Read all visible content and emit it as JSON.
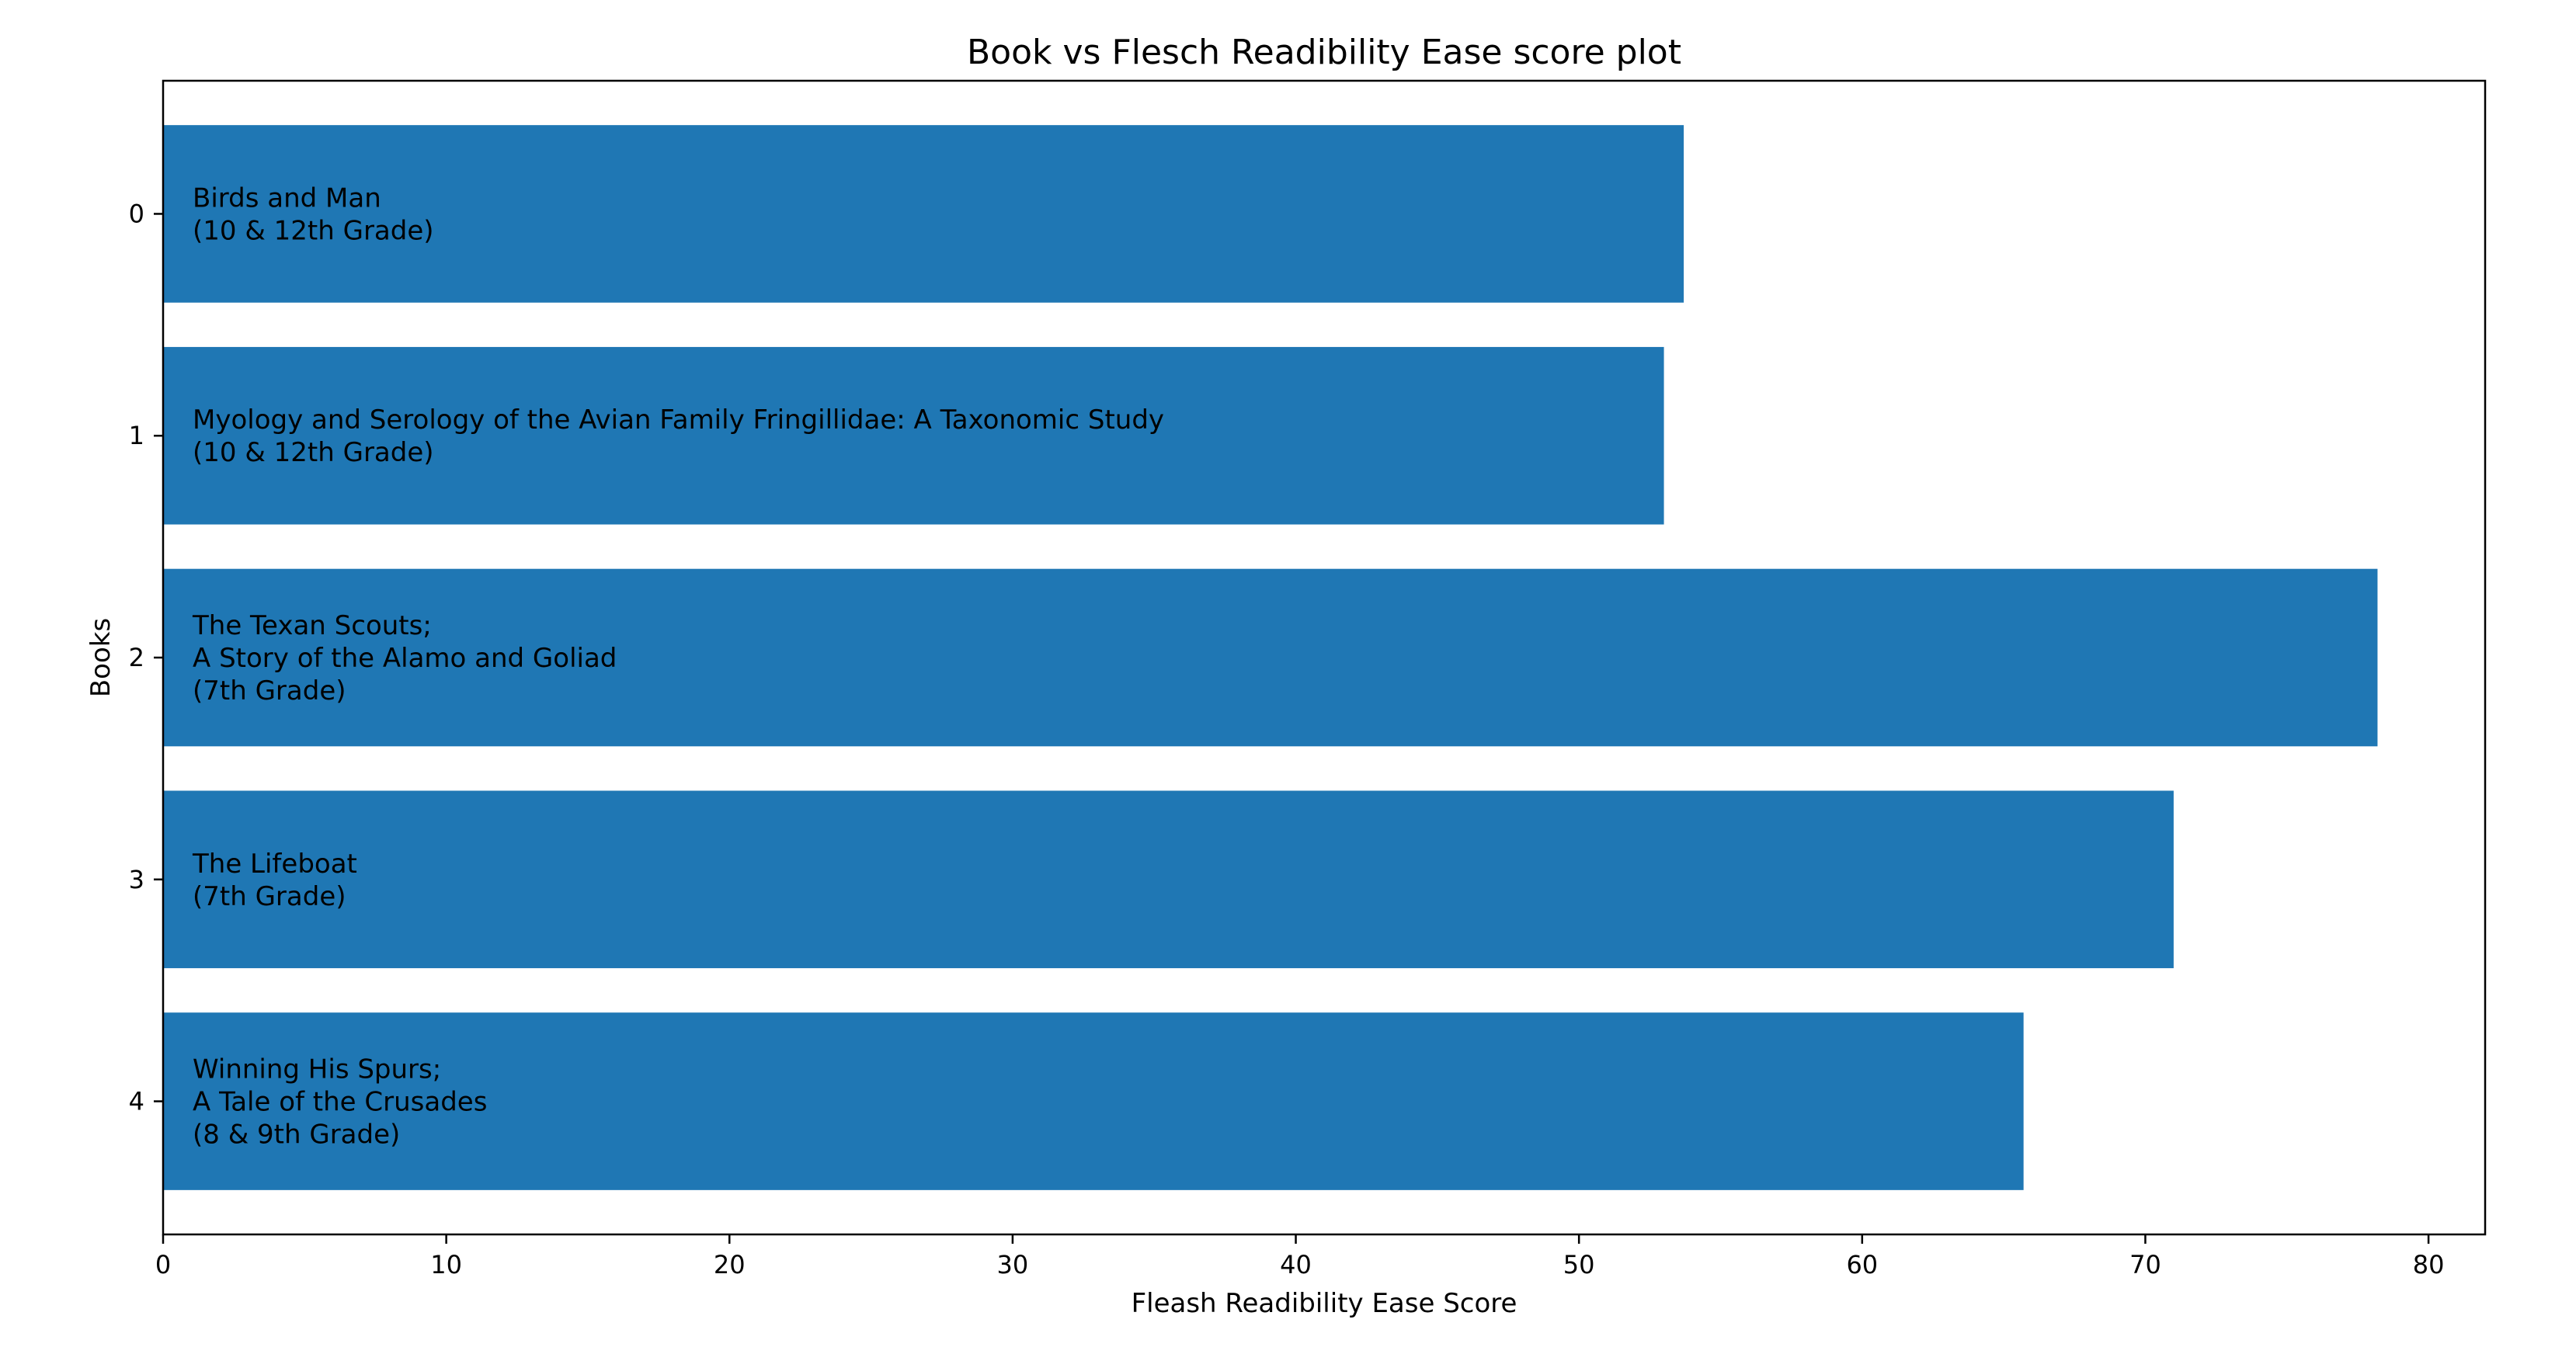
{
  "chart_data": {
    "type": "bar",
    "orientation": "horizontal",
    "title": "Book vs Flesch  Readibility Ease score plot",
    "xlabel": "Fleash Readibility Ease Score",
    "ylabel": "Books",
    "xlim": [
      0,
      82
    ],
    "ylim": [
      4.6,
      -0.6
    ],
    "x_ticks": [
      "0",
      "10",
      "20",
      "30",
      "40",
      "50",
      "60",
      "70",
      "80"
    ],
    "y_ticks": [
      "0",
      "1",
      "2",
      "3",
      "4"
    ],
    "grid": false,
    "bar_color": "#1f77b4",
    "bars": [
      {
        "category": 0,
        "value": 53.7,
        "lines": [
          "Birds and Man",
          "(10 & 12th Grade)"
        ]
      },
      {
        "category": 1,
        "value": 53.0,
        "lines": [
          "Myology and Serology of the Avian Family Fringillidae: A Taxonomic Study",
          "(10 & 12th Grade)"
        ]
      },
      {
        "category": 2,
        "value": 78.2,
        "lines": [
          "The Texan Scouts;",
          "A Story of the Alamo and Goliad",
          "(7th Grade)"
        ]
      },
      {
        "category": 3,
        "value": 71.0,
        "lines": [
          "The Lifeboat",
          "(7th Grade)"
        ]
      },
      {
        "category": 4,
        "value": 65.7,
        "lines": [
          "Winning His Spurs;",
          "A Tale of the Crusades",
          "(8 & 9th Grade)"
        ]
      }
    ]
  }
}
